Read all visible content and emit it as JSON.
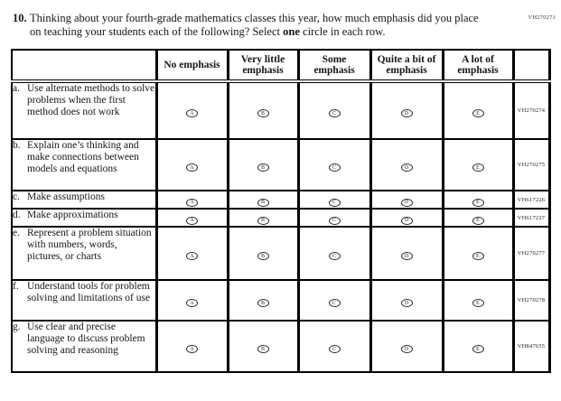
{
  "page_code": "VH270271",
  "question": {
    "number": "10.",
    "text_before_bold": "Thinking about your fourth-grade mathematics classes this year, how much emphasis did you place on teaching your students each of the following? Select ",
    "bold_word": "one",
    "text_after_bold": " circle in each row."
  },
  "table": {
    "headers": [
      "No emphasis",
      "Very little emphasis",
      "Some emphasis",
      "Quite a bit of emphasis",
      "A lot of emphasis"
    ],
    "option_letters": [
      "A",
      "B",
      "C",
      "D",
      "E"
    ],
    "rows": [
      {
        "letter": "a.",
        "label": "Use alternate methods to solve problems when the first method does not work",
        "code": "VH270274"
      },
      {
        "letter": "b.",
        "label": "Explain one’s thinking and make connections between models and equations",
        "code": "VH270275"
      },
      {
        "letter": "c.",
        "label": "Make assumptions",
        "code": "VH617226"
      },
      {
        "letter": "d.",
        "label": "Make approximations",
        "code": "VH617227"
      },
      {
        "letter": "e.",
        "label": "Represent a problem situation with numbers, words, pictures, or charts",
        "code": "VH270277"
      },
      {
        "letter": "f.",
        "label": "Understand tools for problem solving and limitations of use",
        "code": "VH270278"
      },
      {
        "letter": "g.",
        "label": "Use clear and precise language to discuss problem solving and reasoning",
        "code": "VH847655"
      }
    ]
  }
}
